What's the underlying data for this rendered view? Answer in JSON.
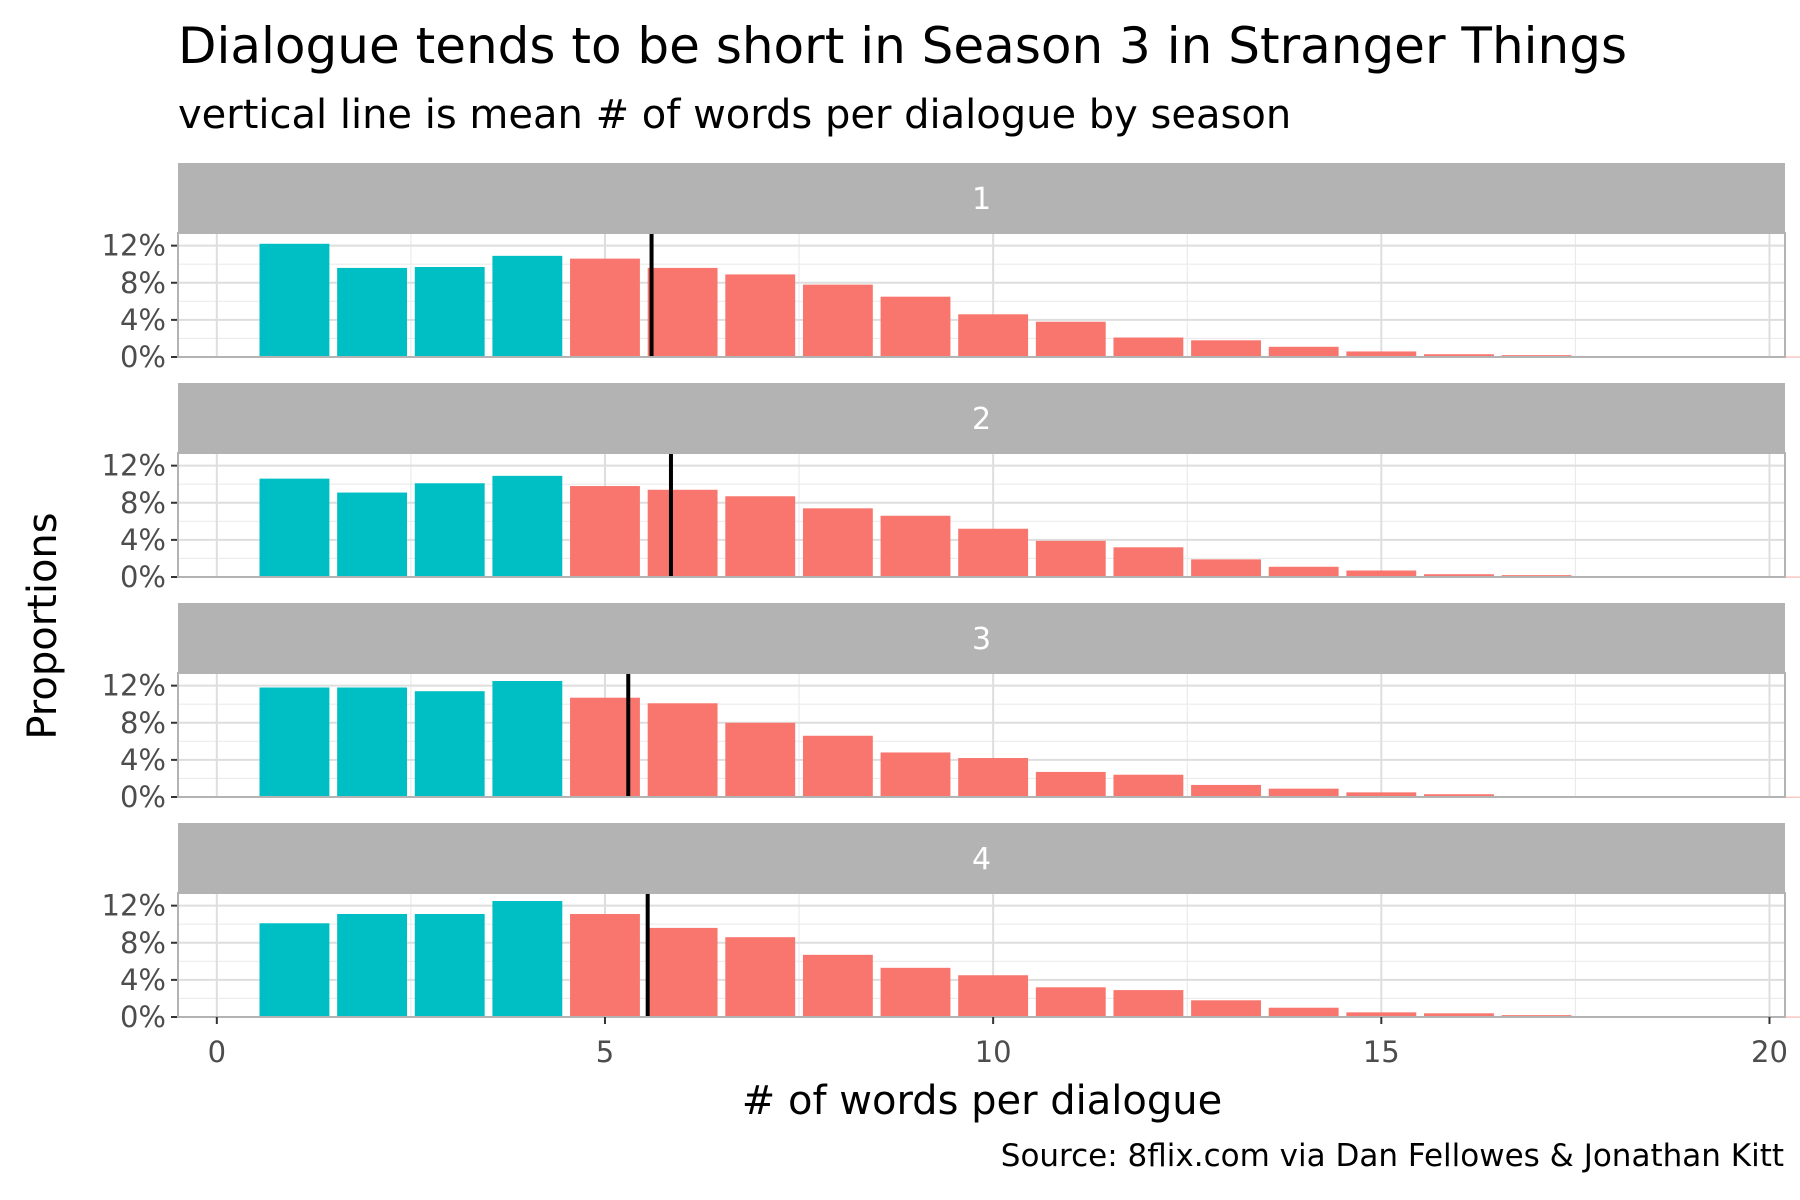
{
  "title": "Dialogue tends to be short in Season 3 in Stranger Things",
  "subtitle": "vertical line is mean # of words per dialogue by season",
  "caption": "Source: 8flix.com via Dan Fellowes & Jonathan Kitt",
  "colors": {
    "short_bar": "#00BFC4",
    "long_bar": "#F8766D",
    "strip_background": "#B3B3B3",
    "grid": "#EBEBEB",
    "mean_line": "#000000"
  },
  "chart_data": {
    "type": "bar",
    "facet_by": "season",
    "xlabel": "# of words per dialogue",
    "ylabel": "Proportions",
    "xlim": [
      -0.5,
      20.2
    ],
    "x_ticks": [
      0,
      5,
      10,
      15,
      20
    ],
    "ylim": [
      0,
      0.125
    ],
    "y_ticks": [
      0,
      0.04,
      0.08,
      0.12
    ],
    "y_tick_labels": [
      "0%",
      "4%",
      "8%",
      "12%"
    ],
    "grid": true,
    "legend": "none",
    "x": [
      1,
      2,
      3,
      4,
      5,
      6,
      7,
      8,
      9,
      10,
      11,
      12,
      13,
      14,
      15,
      16,
      17,
      18,
      19,
      20
    ],
    "short_threshold": 4,
    "facets": [
      {
        "label": "1",
        "mean": 5.6,
        "values": [
          0.122,
          0.096,
          0.097,
          0.109,
          0.106,
          0.096,
          0.089,
          0.078,
          0.065,
          0.046,
          0.038,
          0.021,
          0.018,
          0.011,
          0.006,
          0.003,
          0.002,
          0.001,
          0.0005,
          0.0003
        ]
      },
      {
        "label": "2",
        "mean": 5.85,
        "values": [
          0.106,
          0.091,
          0.101,
          0.109,
          0.098,
          0.094,
          0.087,
          0.074,
          0.066,
          0.052,
          0.039,
          0.032,
          0.019,
          0.011,
          0.007,
          0.003,
          0.002,
          0.001,
          0.0005,
          0.0003
        ]
      },
      {
        "label": "3",
        "mean": 5.3,
        "values": [
          0.118,
          0.118,
          0.114,
          0.125,
          0.107,
          0.101,
          0.08,
          0.066,
          0.048,
          0.042,
          0.027,
          0.024,
          0.013,
          0.009,
          0.005,
          0.003,
          0.001,
          0.0006,
          0.0003,
          0.0002
        ]
      },
      {
        "label": "4",
        "mean": 5.55,
        "values": [
          0.101,
          0.111,
          0.111,
          0.125,
          0.111,
          0.096,
          0.086,
          0.067,
          0.053,
          0.045,
          0.032,
          0.029,
          0.018,
          0.01,
          0.005,
          0.004,
          0.002,
          0.001,
          0.0005,
          0.0003
        ]
      }
    ]
  }
}
